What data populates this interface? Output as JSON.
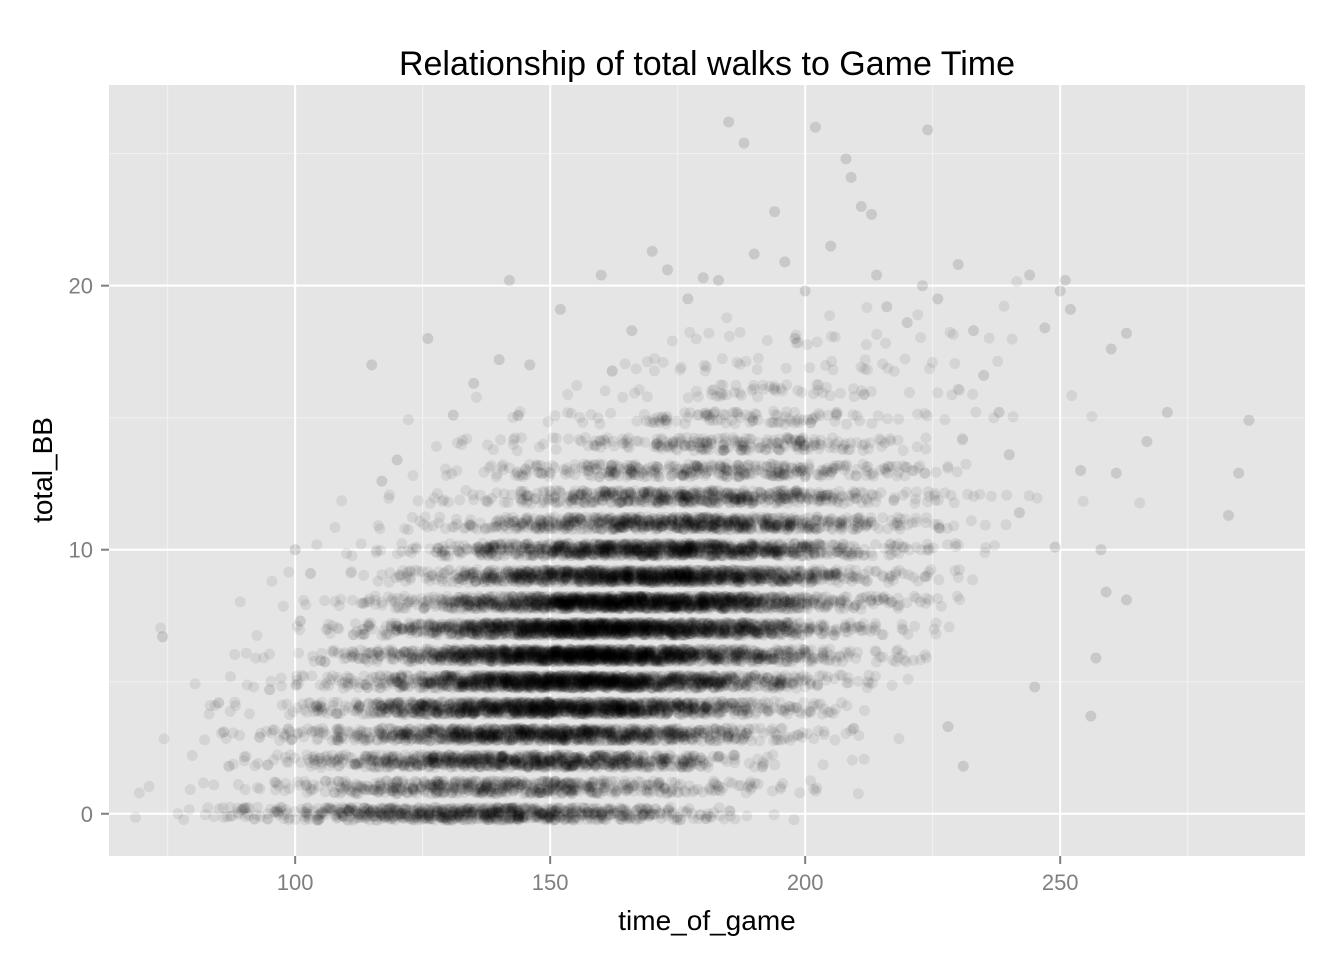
{
  "chart_data": {
    "type": "scatter",
    "title": "Relationship of total walks to Game Time",
    "xlabel": "time_of_game",
    "ylabel": "total_BB",
    "xlim": [
      63.5,
      298
    ],
    "ylim": [
      -1.6,
      27.6
    ],
    "x_ticks": [
      100,
      150,
      200,
      250
    ],
    "x_tick_labels": [
      "100",
      "150",
      "200",
      "250"
    ],
    "y_ticks": [
      0,
      10,
      20
    ],
    "y_tick_labels": [
      "0",
      "10",
      "20"
    ],
    "grid": true,
    "legend": "none",
    "point_color": "#000000",
    "point_alpha": 0.07,
    "panel_background": "#e5e5e5",
    "grid_color": "#ffffff",
    "sample_points": [
      {
        "x": 74,
        "y": 6.7
      },
      {
        "x": 85,
        "y": 4.2
      },
      {
        "x": 86,
        "y": 3.1
      },
      {
        "x": 87,
        "y": 1.8
      },
      {
        "x": 92,
        "y": -0.2
      },
      {
        "x": 93,
        "y": 2.9
      },
      {
        "x": 95,
        "y": 4.7
      },
      {
        "x": 96,
        "y": 1.2
      },
      {
        "x": 100,
        "y": 10.0
      },
      {
        "x": 101,
        "y": 7.3
      },
      {
        "x": 103,
        "y": 9.1
      },
      {
        "x": 105,
        "y": 5.8
      },
      {
        "x": 115,
        "y": 17.0
      },
      {
        "x": 117,
        "y": 12.6
      },
      {
        "x": 120,
        "y": 13.4
      },
      {
        "x": 126,
        "y": 18.0
      },
      {
        "x": 131,
        "y": 15.1
      },
      {
        "x": 135,
        "y": 16.3
      },
      {
        "x": 140,
        "y": 17.2
      },
      {
        "x": 142,
        "y": 20.2
      },
      {
        "x": 146,
        "y": 17.0
      },
      {
        "x": 152,
        "y": 19.1
      },
      {
        "x": 160,
        "y": 20.4
      },
      {
        "x": 166,
        "y": 18.3
      },
      {
        "x": 170,
        "y": 21.3
      },
      {
        "x": 173,
        "y": 20.6
      },
      {
        "x": 177,
        "y": 19.5
      },
      {
        "x": 180,
        "y": 20.3
      },
      {
        "x": 183,
        "y": 20.2
      },
      {
        "x": 185,
        "y": 26.2
      },
      {
        "x": 188,
        "y": 25.4
      },
      {
        "x": 190,
        "y": 21.2
      },
      {
        "x": 194,
        "y": 22.8
      },
      {
        "x": 196,
        "y": 20.9
      },
      {
        "x": 198,
        "y": 18.0
      },
      {
        "x": 200,
        "y": 19.8
      },
      {
        "x": 202,
        "y": 26.0
      },
      {
        "x": 205,
        "y": 21.5
      },
      {
        "x": 208,
        "y": 24.8
      },
      {
        "x": 209,
        "y": 24.1
      },
      {
        "x": 211,
        "y": 23.0
      },
      {
        "x": 213,
        "y": 22.7
      },
      {
        "x": 214,
        "y": 20.4
      },
      {
        "x": 216,
        "y": 19.2
      },
      {
        "x": 220,
        "y": 18.6
      },
      {
        "x": 223,
        "y": 20.0
      },
      {
        "x": 224,
        "y": 25.9
      },
      {
        "x": 226,
        "y": 19.5
      },
      {
        "x": 228,
        "y": 3.3
      },
      {
        "x": 230,
        "y": 20.8
      },
      {
        "x": 231,
        "y": 1.8
      },
      {
        "x": 233,
        "y": 18.3
      },
      {
        "x": 235,
        "y": 16.6
      },
      {
        "x": 238,
        "y": 15.2
      },
      {
        "x": 240,
        "y": 13.6
      },
      {
        "x": 242,
        "y": 11.4
      },
      {
        "x": 244,
        "y": 20.4
      },
      {
        "x": 245,
        "y": 4.8
      },
      {
        "x": 247,
        "y": 18.4
      },
      {
        "x": 249,
        "y": 10.1
      },
      {
        "x": 250,
        "y": 19.8
      },
      {
        "x": 251,
        "y": 20.2
      },
      {
        "x": 252,
        "y": 19.1
      },
      {
        "x": 254,
        "y": 13.0
      },
      {
        "x": 256,
        "y": 3.7
      },
      {
        "x": 257,
        "y": 5.9
      },
      {
        "x": 258,
        "y": 10.0
      },
      {
        "x": 259,
        "y": 8.4
      },
      {
        "x": 260,
        "y": 17.6
      },
      {
        "x": 261,
        "y": 12.9
      },
      {
        "x": 263,
        "y": 8.1
      },
      {
        "x": 263,
        "y": 18.2
      },
      {
        "x": 267,
        "y": 14.1
      },
      {
        "x": 271,
        "y": 15.2
      },
      {
        "x": 283,
        "y": 11.3
      },
      {
        "x": 285,
        "y": 12.9
      },
      {
        "x": 287,
        "y": 14.9
      }
    ],
    "density_model": {
      "description": "Dense cloud of points concentrated around time_of_game ≈ 150–175 and total_BB ≈ 2–11, with total_BB taking integer values (horizontal banding) and a positive trend with time_of_game.",
      "x_mean": 160,
      "x_sd": 25,
      "y_intercept_at_x_mean": 6.5,
      "y_slope_per_minute": 0.075,
      "y_sd": 3.2
    }
  }
}
